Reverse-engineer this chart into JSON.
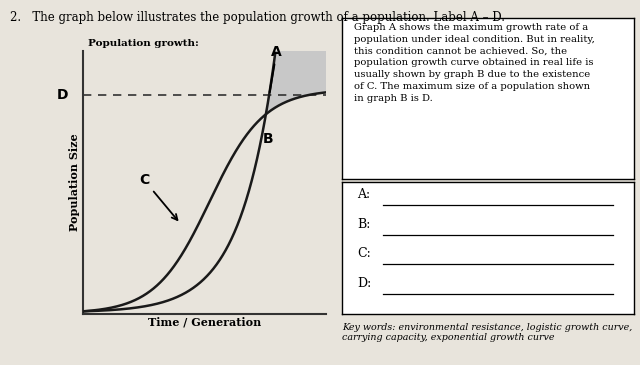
{
  "title": "2.   The graph below illustrates the population growth of a population. Label A – D.",
  "graph_title": "Population growth:",
  "xlabel": "Time / Generation",
  "ylabel": "Population Size",
  "page_color": "#e8e4dc",
  "label_A": "A",
  "label_B": "B",
  "label_C": "C",
  "label_D": "D",
  "description_text": "Graph A shows the maximum growth rate of a\npopulation under ideal condition. But in reality,\nthis condition cannot be achieved. So, the\npopulation growth curve obtained in real life is\nusually shown by graph B due to the existence\nof C. The maximum size of a population shown\nin graph B is D.",
  "answer_labels": [
    "A:",
    "B:",
    "C:",
    "D:"
  ],
  "keywords_text": "Key words: environmental resistance, logistic growth curve,\ncarrying capacity, exponential growth curve",
  "line_color": "#1a1a1a",
  "fill_color": "#c8c8c8",
  "dashed_color": "#333333",
  "box_color": "white"
}
